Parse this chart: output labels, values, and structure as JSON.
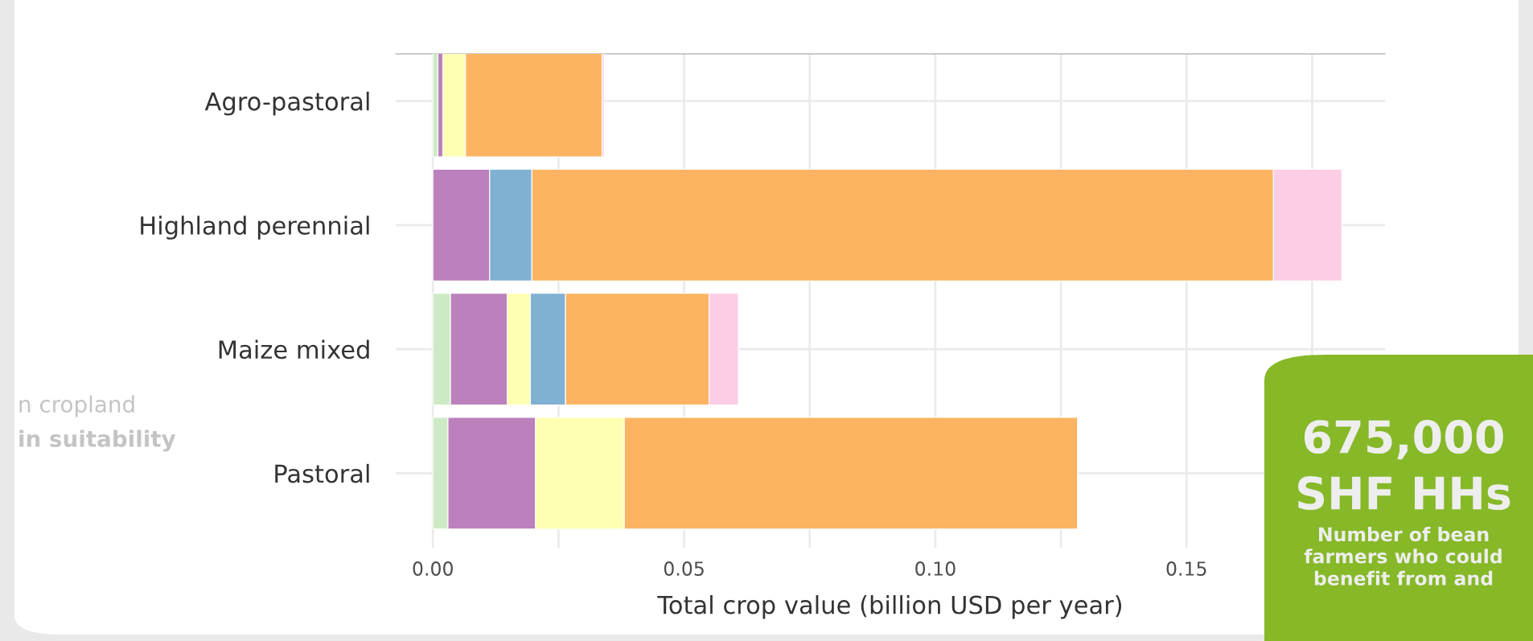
{
  "chart_data": {
    "type": "bar",
    "orientation": "horizontal",
    "stacked": true,
    "categories": [
      "Agro-pastoral",
      "Highland perennial",
      "Maize mixed",
      "Pastoral"
    ],
    "series": [
      {
        "color": "#ccebc5",
        "values": [
          0.001,
          0,
          0.0035,
          0.003
        ]
      },
      {
        "color": "#bc80bd",
        "values": [
          0.001,
          0.0113,
          0.0113,
          0.0174
        ]
      },
      {
        "color": "#ffffb3",
        "values": [
          0.0045,
          0,
          0.0046,
          0.0177
        ]
      },
      {
        "color": "#80b1d3",
        "values": [
          0,
          0.0084,
          0.007,
          0
        ]
      },
      {
        "color": "#fdb462",
        "values": [
          0.0272,
          0.1476,
          0.0286,
          0.0902
        ]
      },
      {
        "color": "#fccde5",
        "values": [
          0.0004,
          0.0136,
          0.0058,
          0
        ]
      }
    ],
    "xlabel": "Total crop value (billion USD per year)",
    "xlim": [
      -0.0074,
      0.1895
    ],
    "xticks": [
      {
        "value": 0,
        "label": "0.00"
      },
      {
        "value": 0.025,
        "label": null
      },
      {
        "value": 0.05,
        "label": "0.05"
      },
      {
        "value": 0.075,
        "label": null
      },
      {
        "value": 0.1,
        "label": "0.10"
      },
      {
        "value": 0.125,
        "label": null
      },
      {
        "value": 0.15,
        "label": "0.15"
      },
      {
        "value": 0.175,
        "label": null
      }
    ],
    "grid": true,
    "annotations": [
      "n cropland",
      "in suitability",
      "675,000",
      "SHF HHs",
      "Number of bean farmers who could benefit from and"
    ]
  }
}
